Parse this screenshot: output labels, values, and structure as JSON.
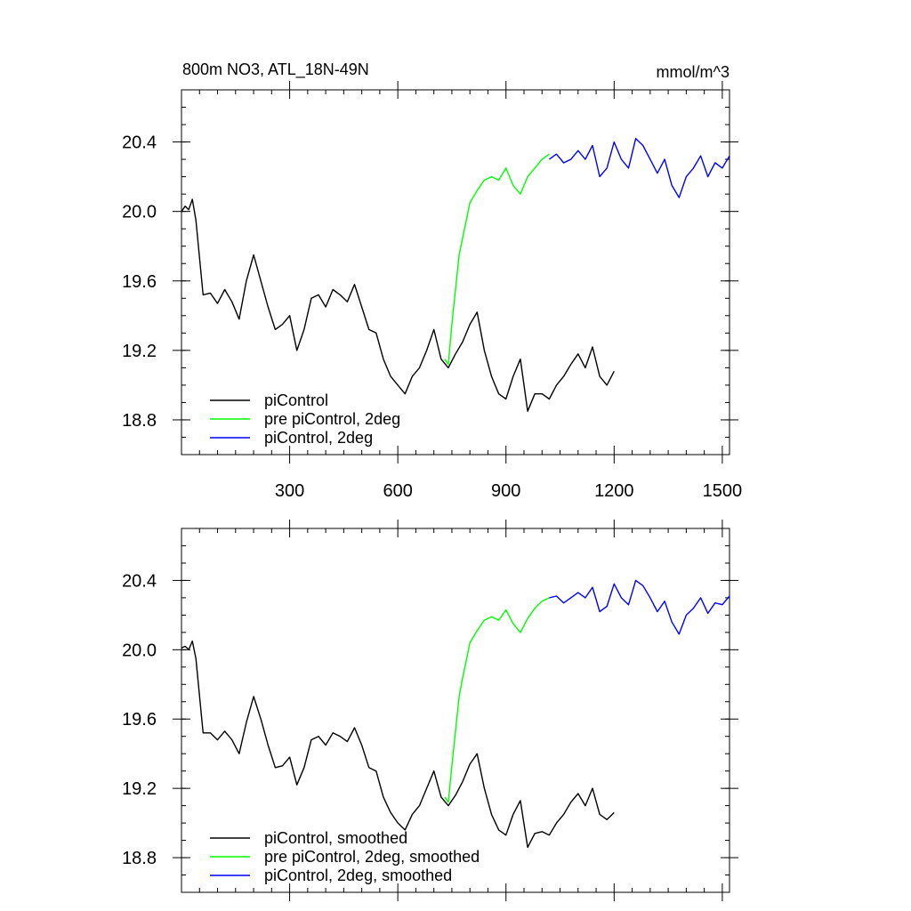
{
  "chart_data": [
    {
      "type": "line",
      "title_left": "800m NO3, ATL_18N-49N",
      "title_right": "mmol/m^3",
      "xlim": [
        0,
        1520
      ],
      "ylim": [
        18.6,
        20.7
      ],
      "x_ticks": [
        300,
        600,
        900,
        1200,
        1500
      ],
      "x_tick_labels": [
        "300",
        "600",
        "900",
        "1200",
        "1500"
      ],
      "y_ticks": [
        18.8,
        19.2,
        19.6,
        20.0,
        20.4
      ],
      "y_tick_labels": [
        "18.8",
        "19.2",
        "19.6",
        "20.0",
        "20.4"
      ],
      "grid": false,
      "legend_position": "bottom-left",
      "series": [
        {
          "name": "piControl",
          "color": "#000000",
          "x": [
            0,
            10,
            20,
            30,
            40,
            60,
            80,
            100,
            120,
            140,
            160,
            180,
            200,
            220,
            240,
            260,
            280,
            300,
            320,
            340,
            360,
            380,
            400,
            420,
            440,
            460,
            480,
            500,
            520,
            540,
            560,
            580,
            600,
            620,
            640,
            660,
            680,
            700,
            720,
            740,
            760,
            780,
            800,
            820,
            840,
            860,
            880,
            900,
            920,
            940,
            960,
            980,
            1000,
            1020,
            1040,
            1060,
            1080,
            1100,
            1120,
            1140,
            1160,
            1180,
            1200
          ],
          "y": [
            20.0,
            20.03,
            20.01,
            20.07,
            19.95,
            19.52,
            19.53,
            19.47,
            19.55,
            19.48,
            19.38,
            19.6,
            19.75,
            19.6,
            19.45,
            19.32,
            19.35,
            19.4,
            19.2,
            19.32,
            19.5,
            19.52,
            19.45,
            19.55,
            19.52,
            19.48,
            19.58,
            19.45,
            19.32,
            19.3,
            19.15,
            19.05,
            19.0,
            18.95,
            19.05,
            19.1,
            19.2,
            19.32,
            19.15,
            19.1,
            19.18,
            19.25,
            19.35,
            19.42,
            19.2,
            19.05,
            18.95,
            18.92,
            19.05,
            19.15,
            18.85,
            18.95,
            18.95,
            18.92,
            19.0,
            19.05,
            19.12,
            19.18,
            19.1,
            19.22,
            19.05,
            19.0,
            19.08
          ]
        },
        {
          "name": "pre piControl, 2deg",
          "color": "#00ff00",
          "x": [
            730,
            740,
            750,
            760,
            770,
            780,
            790,
            800,
            820,
            840,
            860,
            880,
            900,
            920,
            940,
            960,
            980,
            1000,
            1020
          ],
          "y": [
            19.15,
            19.12,
            19.35,
            19.55,
            19.75,
            19.85,
            19.95,
            20.05,
            20.12,
            20.18,
            20.2,
            20.18,
            20.25,
            20.15,
            20.1,
            20.2,
            20.25,
            20.3,
            20.33
          ]
        },
        {
          "name": "piControl, 2deg",
          "color": "#0000ff",
          "x": [
            1020,
            1040,
            1060,
            1080,
            1100,
            1120,
            1140,
            1160,
            1180,
            1200,
            1220,
            1240,
            1260,
            1280,
            1300,
            1320,
            1340,
            1360,
            1380,
            1400,
            1420,
            1440,
            1460,
            1480,
            1500,
            1520
          ],
          "y": [
            20.3,
            20.33,
            20.28,
            20.3,
            20.35,
            20.3,
            20.38,
            20.2,
            20.25,
            20.4,
            20.3,
            20.25,
            20.42,
            20.38,
            20.3,
            20.22,
            20.3,
            20.15,
            20.08,
            20.2,
            20.25,
            20.32,
            20.2,
            20.28,
            20.25,
            20.32
          ]
        }
      ]
    },
    {
      "type": "line",
      "xlim": [
        0,
        1520
      ],
      "ylim": [
        18.6,
        20.7
      ],
      "x_ticks": [
        300,
        600,
        900,
        1200,
        1500
      ],
      "y_ticks": [
        18.8,
        19.2,
        19.6,
        20.0,
        20.4
      ],
      "y_tick_labels": [
        "18.8",
        "19.2",
        "19.6",
        "20.0",
        "20.4"
      ],
      "grid": false,
      "legend_position": "bottom-left",
      "series": [
        {
          "name": "piControl, smoothed",
          "color": "#000000",
          "x": [
            0,
            10,
            20,
            30,
            40,
            60,
            80,
            100,
            120,
            140,
            160,
            180,
            200,
            220,
            240,
            260,
            280,
            300,
            320,
            340,
            360,
            380,
            400,
            420,
            440,
            460,
            480,
            500,
            520,
            540,
            560,
            580,
            600,
            620,
            640,
            660,
            680,
            700,
            720,
            740,
            760,
            780,
            800,
            820,
            840,
            860,
            880,
            900,
            920,
            940,
            960,
            980,
            1000,
            1020,
            1040,
            1060,
            1080,
            1100,
            1120,
            1140,
            1160,
            1180,
            1200
          ],
          "y": [
            20.01,
            20.02,
            20.0,
            20.05,
            19.95,
            19.52,
            19.52,
            19.48,
            19.53,
            19.48,
            19.4,
            19.58,
            19.73,
            19.6,
            19.45,
            19.32,
            19.33,
            19.38,
            19.22,
            19.32,
            19.48,
            19.5,
            19.45,
            19.52,
            19.5,
            19.47,
            19.55,
            19.45,
            19.32,
            19.3,
            19.15,
            19.06,
            19.0,
            18.96,
            19.05,
            19.1,
            19.2,
            19.3,
            19.15,
            19.1,
            19.16,
            19.24,
            19.34,
            19.4,
            19.2,
            19.05,
            18.96,
            18.93,
            19.05,
            19.13,
            18.86,
            18.94,
            18.95,
            18.93,
            19.0,
            19.05,
            19.12,
            19.17,
            19.1,
            19.2,
            19.05,
            19.02,
            19.06
          ]
        },
        {
          "name": "pre piControl, 2deg, smoothed",
          "color": "#00ff00",
          "x": [
            730,
            740,
            750,
            760,
            770,
            780,
            790,
            800,
            820,
            840,
            860,
            880,
            900,
            920,
            940,
            960,
            980,
            1000,
            1020
          ],
          "y": [
            19.15,
            19.12,
            19.33,
            19.53,
            19.73,
            19.84,
            19.94,
            20.04,
            20.11,
            20.17,
            20.19,
            20.17,
            20.23,
            20.15,
            20.1,
            20.18,
            20.24,
            20.28,
            20.3
          ]
        },
        {
          "name": "piControl, 2deg, smoothed",
          "color": "#0000ff",
          "x": [
            1020,
            1040,
            1060,
            1080,
            1100,
            1120,
            1140,
            1160,
            1180,
            1200,
            1220,
            1240,
            1260,
            1280,
            1300,
            1320,
            1340,
            1360,
            1380,
            1400,
            1420,
            1440,
            1460,
            1480,
            1500,
            1520
          ],
          "y": [
            20.3,
            20.31,
            20.27,
            20.3,
            20.33,
            20.3,
            20.36,
            20.22,
            20.25,
            20.38,
            20.3,
            20.26,
            20.4,
            20.37,
            20.3,
            20.22,
            20.28,
            20.16,
            20.09,
            20.2,
            20.24,
            20.3,
            20.21,
            20.27,
            20.26,
            20.31
          ]
        }
      ]
    }
  ]
}
